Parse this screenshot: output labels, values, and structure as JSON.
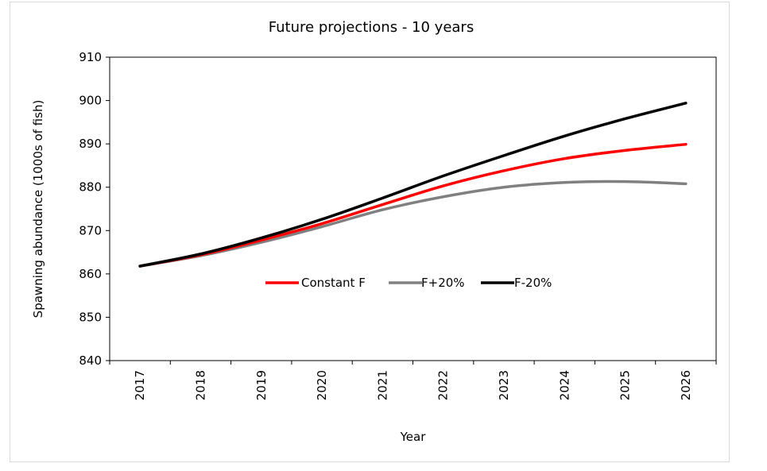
{
  "chart_data": {
    "type": "line",
    "title": "Future projections - 10 years",
    "xlabel": "Year",
    "ylabel": "Spawning abundance (1000s of fish)",
    "x": [
      "2017",
      "2018",
      "2019",
      "2020",
      "2021",
      "2022",
      "2023",
      "2024",
      "2025",
      "2026"
    ],
    "ylim": [
      840,
      910
    ],
    "yticks": [
      840,
      850,
      860,
      870,
      880,
      890,
      900,
      910
    ],
    "grid": false,
    "legend_position": "inside-center",
    "series": [
      {
        "name": "Constant F",
        "color": "#ff0000",
        "values": [
          861.8,
          864.4,
          867.8,
          871.6,
          876.0,
          880.3,
          883.8,
          886.6,
          888.5,
          889.9
        ]
      },
      {
        "name": "F+20%",
        "color": "#808080",
        "values": [
          861.8,
          864.2,
          867.3,
          870.9,
          874.8,
          877.8,
          880.0,
          881.1,
          881.3,
          880.8
        ]
      },
      {
        "name": "F-20%",
        "color": "#000000",
        "values": [
          861.8,
          864.6,
          868.3,
          872.6,
          877.5,
          882.6,
          887.3,
          891.8,
          895.8,
          899.4
        ]
      }
    ]
  }
}
